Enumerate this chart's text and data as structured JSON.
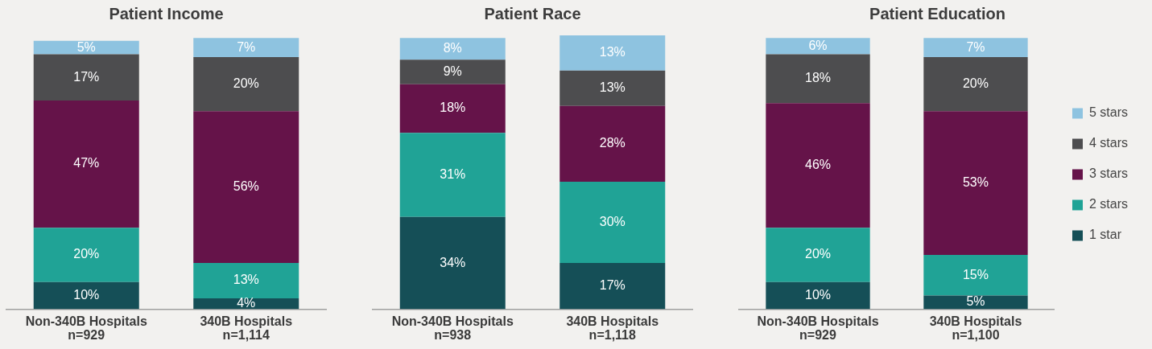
{
  "chart_data": [
    {
      "type": "bar",
      "title": "Patient Income",
      "categories": [
        "Non-340B Hospitals\nn=929",
        "340B Hospitals\nn=1,114"
      ],
      "stacked": true,
      "ylim": [
        0,
        101
      ],
      "tick_labels": "x",
      "series": [
        {
          "color": "#154f57",
          "values": [
            10,
            4
          ],
          "value_labels": [
            "10%",
            "4%"
          ]
        },
        {
          "color": "#20a396",
          "values": [
            20,
            13
          ],
          "value_labels": [
            "20%",
            "13%"
          ]
        },
        {
          "color": "#651349",
          "values": [
            47,
            56
          ],
          "value_labels": [
            "47%",
            "56%"
          ]
        },
        {
          "color": "#4d4d4f",
          "values": [
            17,
            20
          ],
          "value_labels": [
            "17%",
            "20%"
          ]
        },
        {
          "color": "#8ec3e0",
          "values": [
            5,
            7
          ],
          "value_labels": [
            "5%",
            "7%"
          ]
        }
      ]
    },
    {
      "type": "bar",
      "title": "Patient Race",
      "categories": [
        "Non-340B Hospitals\nn=938",
        "340B Hospitals\nn=1,118"
      ],
      "stacked": true,
      "ylim": [
        0,
        101
      ],
      "tick_labels": "x",
      "series": [
        {
          "color": "#154f57",
          "values": [
            34,
            17
          ],
          "value_labels": [
            "34%",
            "17%"
          ]
        },
        {
          "color": "#20a396",
          "values": [
            31,
            30
          ],
          "value_labels": [
            "31%",
            "30%"
          ]
        },
        {
          "color": "#651349",
          "values": [
            18,
            28
          ],
          "value_labels": [
            "18%",
            "28%"
          ]
        },
        {
          "color": "#4d4d4f",
          "values": [
            9,
            13
          ],
          "value_labels": [
            "9%",
            "13%"
          ]
        },
        {
          "color": "#8ec3e0",
          "values": [
            8,
            13
          ],
          "value_labels": [
            "8%",
            "13%"
          ]
        }
      ]
    },
    {
      "type": "bar",
      "title": "Patient Education",
      "categories": [
        "Non-340B Hospitals\nn=929",
        "340B Hospitals\nn=1,100"
      ],
      "stacked": true,
      "ylim": [
        0,
        101
      ],
      "tick_labels": "x",
      "legend": "right",
      "series": [
        {
          "name": "1 star",
          "color": "#154f57",
          "values": [
            10,
            5
          ],
          "value_labels": [
            "10%",
            "5%"
          ]
        },
        {
          "name": "2 stars",
          "color": "#20a396",
          "values": [
            20,
            15
          ],
          "value_labels": [
            "20%",
            "15%"
          ]
        },
        {
          "name": "3 stars",
          "color": "#651349",
          "values": [
            46,
            53
          ],
          "value_labels": [
            "46%",
            "53%"
          ]
        },
        {
          "name": "4 stars",
          "color": "#4d4d4f",
          "values": [
            18,
            20
          ],
          "value_labels": [
            "18%",
            "20%"
          ]
        },
        {
          "name": "5 stars",
          "color": "#8ec3e0",
          "values": [
            6,
            7
          ],
          "value_labels": [
            "6%",
            "7%"
          ]
        }
      ]
    }
  ]
}
